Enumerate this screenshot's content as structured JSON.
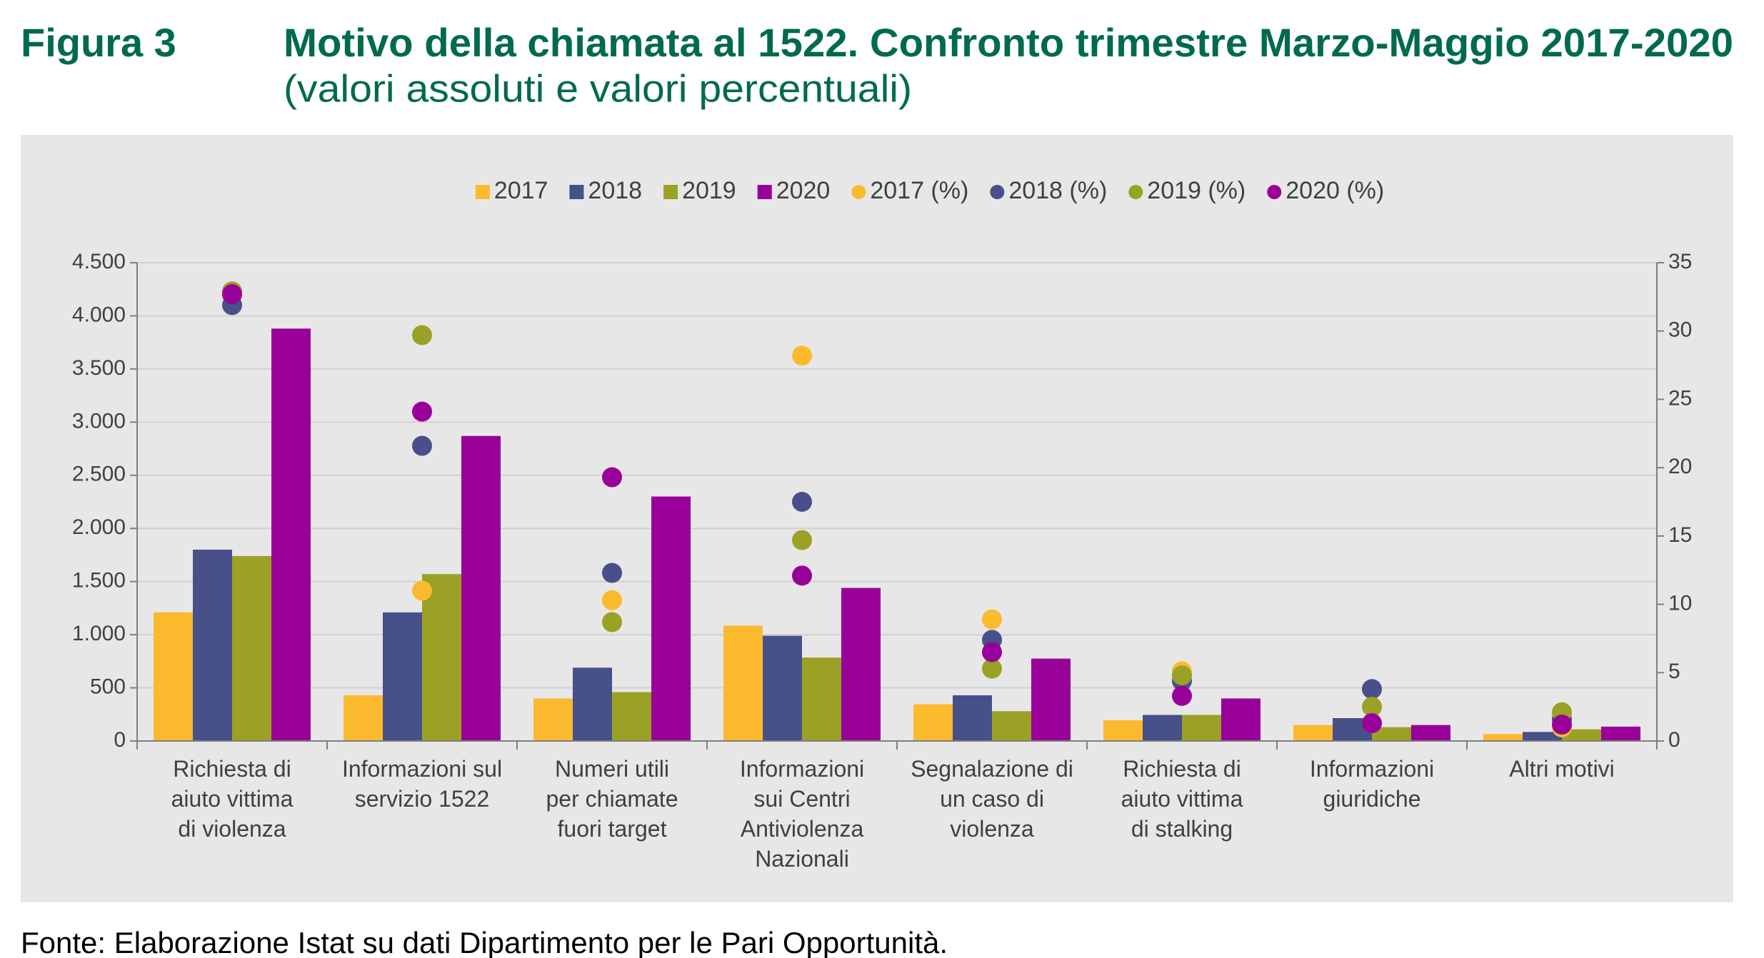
{
  "chart_data": {
    "type": "bar",
    "figure_label": "Figura 3",
    "title": "Motivo della chiamata al 1522. Confronto trimestre Marzo-Maggio 2017-2020",
    "subtitle": "(valori assoluti e valori percentuali)",
    "source": "Fonte: Elaborazione Istat su dati Dipartimento per le Pari Opportunità.",
    "categories": [
      "Richiesta di\naiuto vittima\ndi violenza",
      "Informazioni sul\nservizio 1522",
      "Numeri utili\nper chiamate\nfuori target",
      "Informazioni\nsui Centri\nAntiviolenza\nNazionali",
      "Segnalazione di\nun caso di\nviolenza",
      "Richiesta di\naiuto vittima\ndi stalking",
      "Informazioni\ngiuridiche",
      "Altri motivi"
    ],
    "series": [
      {
        "name": "2017",
        "color": "#FBBA2E",
        "type": "bar",
        "values": [
          1210,
          430,
          400,
          1085,
          345,
          195,
          150,
          65
        ]
      },
      {
        "name": "2018",
        "color": "#48508A",
        "type": "bar",
        "values": [
          1800,
          1210,
          690,
          990,
          430,
          245,
          215,
          85
        ]
      },
      {
        "name": "2019",
        "color": "#9AA125",
        "type": "bar",
        "values": [
          1740,
          1570,
          460,
          785,
          280,
          245,
          130,
          110
        ]
      },
      {
        "name": "2020",
        "color": "#990099",
        "type": "bar",
        "values": [
          3880,
          2870,
          2300,
          1440,
          775,
          400,
          150,
          135
        ]
      },
      {
        "name": "2017 (%)",
        "color": "#FBBA2E",
        "type": "scatter",
        "axis": "y2",
        "values": [
          32.6,
          11.0,
          10.3,
          28.2,
          8.9,
          5.1,
          1.3,
          1.0
        ]
      },
      {
        "name": "2018 (%)",
        "color": "#48508A",
        "type": "scatter",
        "axis": "y2",
        "values": [
          31.9,
          21.6,
          12.3,
          17.5,
          7.4,
          4.4,
          3.8,
          1.6
        ]
      },
      {
        "name": "2019 (%)",
        "color": "#9AA125",
        "type": "scatter",
        "axis": "y2",
        "values": [
          32.9,
          29.7,
          8.7,
          14.7,
          5.3,
          4.8,
          2.5,
          2.1
        ]
      },
      {
        "name": "2020 (%)",
        "color": "#990099",
        "type": "scatter",
        "axis": "y2",
        "values": [
          32.7,
          24.1,
          19.3,
          12.1,
          6.5,
          3.3,
          1.3,
          1.2
        ]
      }
    ],
    "ylim": [
      0,
      4500
    ],
    "yticks": [
      0,
      500,
      {
        "value": 1000,
        "label": "1.000"
      },
      {
        "value": 1500,
        "label": "1.500"
      },
      {
        "value": 2000,
        "label": "2.000"
      },
      {
        "value": 2500,
        "label": "2.500"
      },
      {
        "value": 3000,
        "label": "3.000"
      },
      {
        "value": 3500,
        "label": "3.500"
      },
      {
        "value": 4000,
        "label": "4.000"
      },
      {
        "value": 4500,
        "label": "4.500"
      }
    ],
    "y2lim": [
      0,
      35
    ],
    "y2ticks": [
      0,
      5,
      10,
      15,
      20,
      25,
      30,
      35
    ],
    "grid": true,
    "legend": "top"
  }
}
